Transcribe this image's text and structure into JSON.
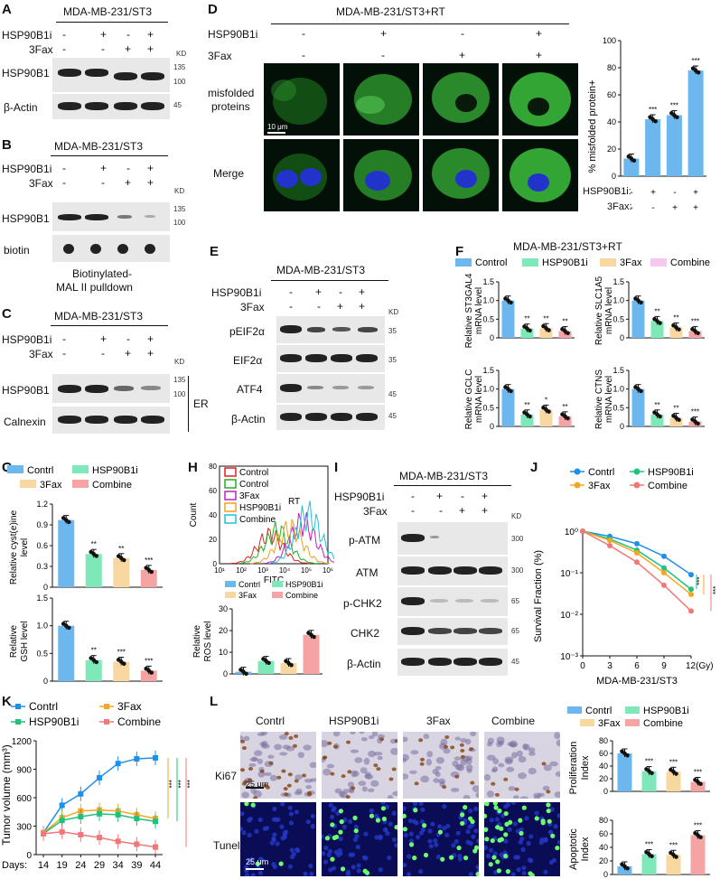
{
  "panels": {
    "A": "A",
    "B": "B",
    "C": "C",
    "D": "D",
    "E": "E",
    "F": "F",
    "G": "G",
    "H": "H",
    "I": "I",
    "J": "J",
    "K": "K",
    "L": "L"
  },
  "common": {
    "cell_line": "MDA-MB-231/ST3",
    "cell_line_rt": "MDA-MB-231/ST3+RT",
    "hsp90b1i": "HSP90B1i",
    "fax": "3Fax",
    "plus": "+",
    "minus": "-",
    "kd": "KD"
  },
  "A": {
    "rows": [
      "HSP90B1",
      "β-Actin"
    ],
    "markers": [
      "135",
      "100",
      "45"
    ]
  },
  "B": {
    "rows": [
      "HSP90B1",
      "biotin"
    ],
    "markers": [
      "135",
      "100"
    ],
    "caption": [
      "Biotinylated-",
      "MAL II pulldown"
    ]
  },
  "C": {
    "rows": [
      "HSP90B1",
      "Calnexin"
    ],
    "markers": [
      "135",
      "100"
    ],
    "bracket": "ER"
  },
  "D": {
    "rows": [
      "misfolded",
      "proteins",
      "Merge"
    ],
    "scale": "10 μm",
    "chart": {
      "ylabel": "% misfolded protein+",
      "yticks": [
        "0",
        "20",
        "40",
        "60",
        "80",
        "100"
      ],
      "row1": "HSP90B1i:",
      "row2": "3Fax:"
    }
  },
  "E": {
    "rows": [
      "pEIF2α",
      "EIF2α",
      "ATF4",
      "β-Actin"
    ],
    "markers": [
      "35",
      "35",
      "45",
      "45"
    ]
  },
  "F": {
    "title": "MDA-MB-231/ST3+RT",
    "legend": [
      "Control",
      "HSP90B1i",
      "3Fax",
      "Combine"
    ],
    "ylabels": [
      [
        "Relative ST3GAL4",
        "mRNA level"
      ],
      [
        "Relative SLC1A5",
        "mRNA level"
      ],
      [
        "Relative GCLC",
        "mRNA level"
      ],
      [
        "Relative CTNS",
        "mRNA level"
      ]
    ],
    "yticks": [
      "0",
      "0.5",
      "1.0",
      "1.5"
    ]
  },
  "G": {
    "legend": [
      "Contrl",
      "HSP90B1i",
      "3Fax",
      "Combine"
    ],
    "ylabel1": [
      "Relative cyst(e)ine",
      "level"
    ],
    "yticks1": [
      "0",
      "0.3",
      "0.6",
      "0.9",
      "1.2"
    ],
    "ylabel2": [
      "Relative",
      "GSH level"
    ],
    "yticks2": [
      "0",
      "0.5",
      "1.0",
      "1.5"
    ]
  },
  "H": {
    "legend": [
      "Control",
      "Control",
      "3Fax",
      "HSP90B1i",
      "Combine"
    ],
    "rt": "RT",
    "ylabel": "Count",
    "xlabel": "FITC",
    "yticks": [
      "0",
      "20",
      "40",
      "60",
      "80"
    ],
    "xticks": [
      "10¹",
      "10²",
      "10³",
      "10⁴",
      "10⁵",
      "10⁶"
    ],
    "legend2": [
      "Contrl",
      "HSP90B1i",
      "3Fax",
      "Combine"
    ],
    "ylabel2": [
      "Relative",
      "ROS level"
    ],
    "yticks2": [
      "0",
      "10",
      "20",
      "30"
    ]
  },
  "I": {
    "rows": [
      "p-ATM",
      "ATM",
      "p-CHK2",
      "CHK2",
      "β-Actin"
    ],
    "markers": [
      "300",
      "300",
      "65",
      "65",
      "45"
    ]
  },
  "J": {
    "legend": [
      "Contrl",
      "HSP90B1i",
      "3Fax",
      "Combine"
    ],
    "ylabel": "Survival Fraction (%)",
    "xlabel": "MDA-MB-231/ST3",
    "xticks": [
      "0",
      "3",
      "6",
      "9",
      "12(Gy)"
    ],
    "yticks": [
      "10⁰",
      "10⁻¹",
      "10⁻²",
      "10⁻³"
    ]
  },
  "K": {
    "legend": [
      "Contrl",
      "3Fax",
      "HSP90B1i",
      "Combine"
    ],
    "ylabel": "Tumor volume (mm³)",
    "xprefix": "Days:",
    "xticks": [
      "14",
      "19",
      "24",
      "29",
      "34",
      "39",
      "44"
    ],
    "yticks": [
      "0",
      "300",
      "600",
      "900",
      "1200"
    ]
  },
  "L": {
    "cols": [
      "Contrl",
      "HSP90B1i",
      "3Fax",
      "Combine"
    ],
    "rows": [
      "Ki67",
      "Tunel"
    ],
    "scale": "25 μm",
    "legend": [
      "Contrl",
      "HSP90B1i",
      "3Fax",
      "Combine"
    ],
    "ylabel1": [
      "Proliferation",
      "Index"
    ],
    "yticks1": [
      "0",
      "20",
      "40",
      "60",
      "80"
    ],
    "ylabel2": [
      "Apoptotic",
      "Index"
    ],
    "yticks2": [
      "0",
      "20",
      "40",
      "60",
      "80"
    ]
  },
  "sig": {
    "s1": "*",
    "s2": "**",
    "s3": "***"
  },
  "colors": {
    "control": "#6bb7ee",
    "hsp": "#7fe8b8",
    "fax": "#f8d7a0",
    "combine": "#f5a3a3",
    "comb_f": "#f7c7f2",
    "line_ctrl": "#1e90e8",
    "line_fax": "#f5a623",
    "line_hsp": "#1fc27a",
    "line_comb": "#f07878"
  },
  "chart_data": [
    {
      "panel": "D",
      "type": "bar",
      "categories": [
        "-/-",
        "+/-",
        "-/+",
        "+/+"
      ],
      "values": [
        13,
        42,
        45,
        78
      ],
      "ylim": [
        0,
        100
      ]
    },
    {
      "panel": "F",
      "type": "bar",
      "categories": [
        "Control",
        "HSP90B1i",
        "3Fax",
        "Combine"
      ],
      "series": [
        {
          "name": "Relative ST3GAL4 mRNA level",
          "values": [
            1.0,
            0.25,
            0.26,
            0.18
          ]
        },
        {
          "name": "Relative SLC1A5 mRNA level",
          "values": [
            1.0,
            0.45,
            0.28,
            0.18
          ]
        },
        {
          "name": "Relative GCLC mRNA level",
          "values": [
            1.0,
            0.32,
            0.45,
            0.27
          ]
        },
        {
          "name": "Relative CTNS mRNA level",
          "values": [
            1.0,
            0.32,
            0.23,
            0.13
          ]
        }
      ],
      "ylim": [
        0,
        1.5
      ]
    },
    {
      "panel": "G",
      "type": "bar",
      "categories": [
        "Contrl",
        "HSP90B1i",
        "3Fax",
        "Combine"
      ],
      "series": [
        {
          "name": "Relative cyst(e)ine level",
          "values": [
            0.97,
            0.48,
            0.42,
            0.25
          ]
        },
        {
          "name": "Relative GSH level",
          "values": [
            1.0,
            0.38,
            0.35,
            0.19
          ]
        }
      ]
    },
    {
      "panel": "H",
      "type": "bar",
      "categories": [
        "Contrl",
        "HSP90B1i",
        "3Fax",
        "Combine"
      ],
      "values": [
        1,
        6,
        5,
        18
      ],
      "ylim": [
        0,
        30
      ]
    },
    {
      "panel": "J",
      "type": "line",
      "x": [
        0,
        3,
        6,
        9,
        12
      ],
      "ylim": [
        0.001,
        1
      ],
      "series": [
        {
          "name": "Contrl",
          "values": [
            1,
            0.75,
            0.5,
            0.25,
            0.09
          ]
        },
        {
          "name": "HSP90B1i",
          "values": [
            1,
            0.65,
            0.35,
            0.13,
            0.04
          ]
        },
        {
          "name": "3Fax",
          "values": [
            1,
            0.6,
            0.3,
            0.1,
            0.03
          ]
        },
        {
          "name": "Combine",
          "values": [
            1,
            0.45,
            0.18,
            0.05,
            0.012
          ]
        }
      ]
    },
    {
      "panel": "K",
      "type": "line",
      "x": [
        14,
        19,
        24,
        29,
        34,
        39,
        44
      ],
      "ylim": [
        0,
        1200
      ],
      "series": [
        {
          "name": "Contrl",
          "values": [
            230,
            520,
            640,
            810,
            960,
            1010,
            1020
          ]
        },
        {
          "name": "3Fax",
          "values": [
            230,
            390,
            460,
            470,
            460,
            420,
            380
          ]
        },
        {
          "name": "HSP90B1i",
          "values": [
            220,
            360,
            400,
            430,
            420,
            380,
            350
          ]
        },
        {
          "name": "Combine",
          "values": [
            220,
            240,
            210,
            180,
            140,
            110,
            80
          ]
        }
      ]
    },
    {
      "panel": "L",
      "type": "bar",
      "categories": [
        "Contrl",
        "HSP90B1i",
        "3Fax",
        "Combine"
      ],
      "series": [
        {
          "name": "Proliferation Index",
          "values": [
            60,
            32,
            31,
            15
          ]
        },
        {
          "name": "Apoptotic Index",
          "values": [
            12,
            30,
            29,
            58
          ]
        }
      ],
      "ylim": [
        0,
        80
      ]
    }
  ]
}
